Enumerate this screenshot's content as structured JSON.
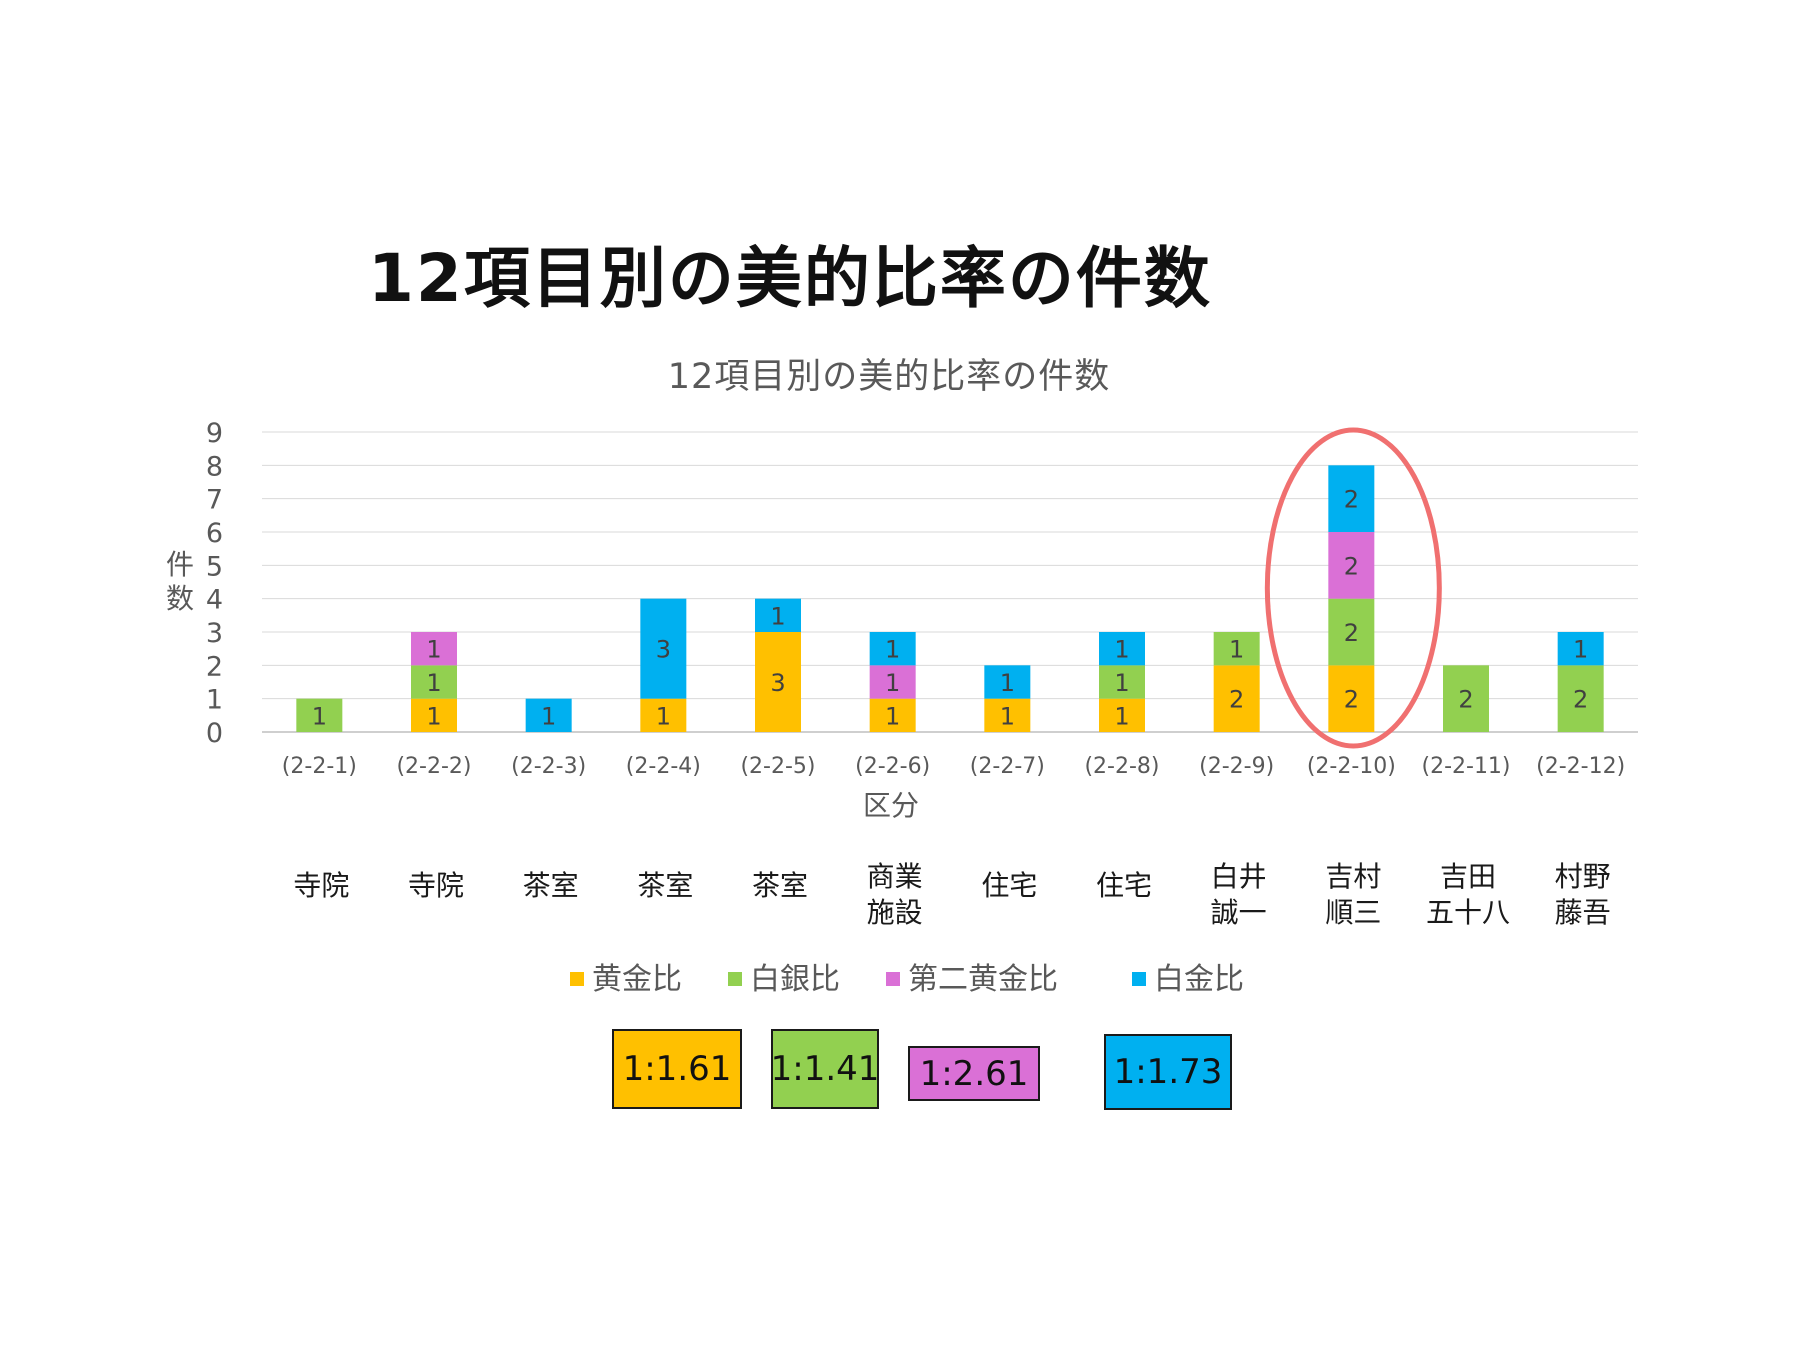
{
  "slide_title": "12項目別の美的比率の件数",
  "chart_data": {
    "type": "bar",
    "stacked": true,
    "title": "12項目別の美的比率の件数",
    "xlabel": "区分",
    "ylabel": "件数",
    "ylim": [
      0,
      9
    ],
    "yticks": [
      "0",
      "1",
      "2",
      "3",
      "4",
      "5",
      "6",
      "7",
      "8",
      "9"
    ],
    "grid": true,
    "legend_position": "bottom",
    "categories": [
      "(2-2-1)",
      "(2-2-2)",
      "(2-2-3)",
      "(2-2-4)",
      "(2-2-5)",
      "(2-2-6)",
      "(2-2-7)",
      "(2-2-8)",
      "(2-2-9)",
      "(2-2-10)",
      "(2-2-11)",
      "(2-2-12)"
    ],
    "sublabels": [
      [
        "寺院"
      ],
      [
        "寺院"
      ],
      [
        "茶室"
      ],
      [
        "茶室"
      ],
      [
        "茶室"
      ],
      [
        "商業",
        "施設"
      ],
      [
        "住宅"
      ],
      [
        "住宅"
      ],
      [
        "白井",
        "誠一"
      ],
      [
        "吉村",
        "順三"
      ],
      [
        "吉田",
        "五十八"
      ],
      [
        "村野",
        "藤吾"
      ]
    ],
    "series": [
      {
        "name": "黄金比",
        "color": "#FFC000",
        "values": [
          0,
          1,
          0,
          1,
          3,
          1,
          1,
          1,
          2,
          2,
          0,
          0
        ]
      },
      {
        "name": "白銀比",
        "color": "#92D050",
        "values": [
          1,
          1,
          0,
          0,
          0,
          0,
          0,
          1,
          1,
          2,
          2,
          2
        ]
      },
      {
        "name": "第二黄金比",
        "color": "#DA70D6",
        "values": [
          0,
          1,
          0,
          0,
          0,
          1,
          0,
          0,
          0,
          2,
          0,
          0
        ]
      },
      {
        "name": "白金比",
        "color": "#00B0F0",
        "values": [
          0,
          0,
          1,
          3,
          1,
          1,
          1,
          1,
          0,
          2,
          0,
          1
        ]
      }
    ],
    "highlight": {
      "category": "(2-2-10)",
      "color": "#F07070"
    }
  },
  "ratio_boxes": [
    {
      "label": "1:1.61",
      "color": "#FFC000"
    },
    {
      "label": "1:1.41",
      "color": "#92D050"
    },
    {
      "label": "1:2.61",
      "color": "#DA70D6"
    },
    {
      "label": "1:1.73",
      "color": "#00B0F0"
    }
  ]
}
